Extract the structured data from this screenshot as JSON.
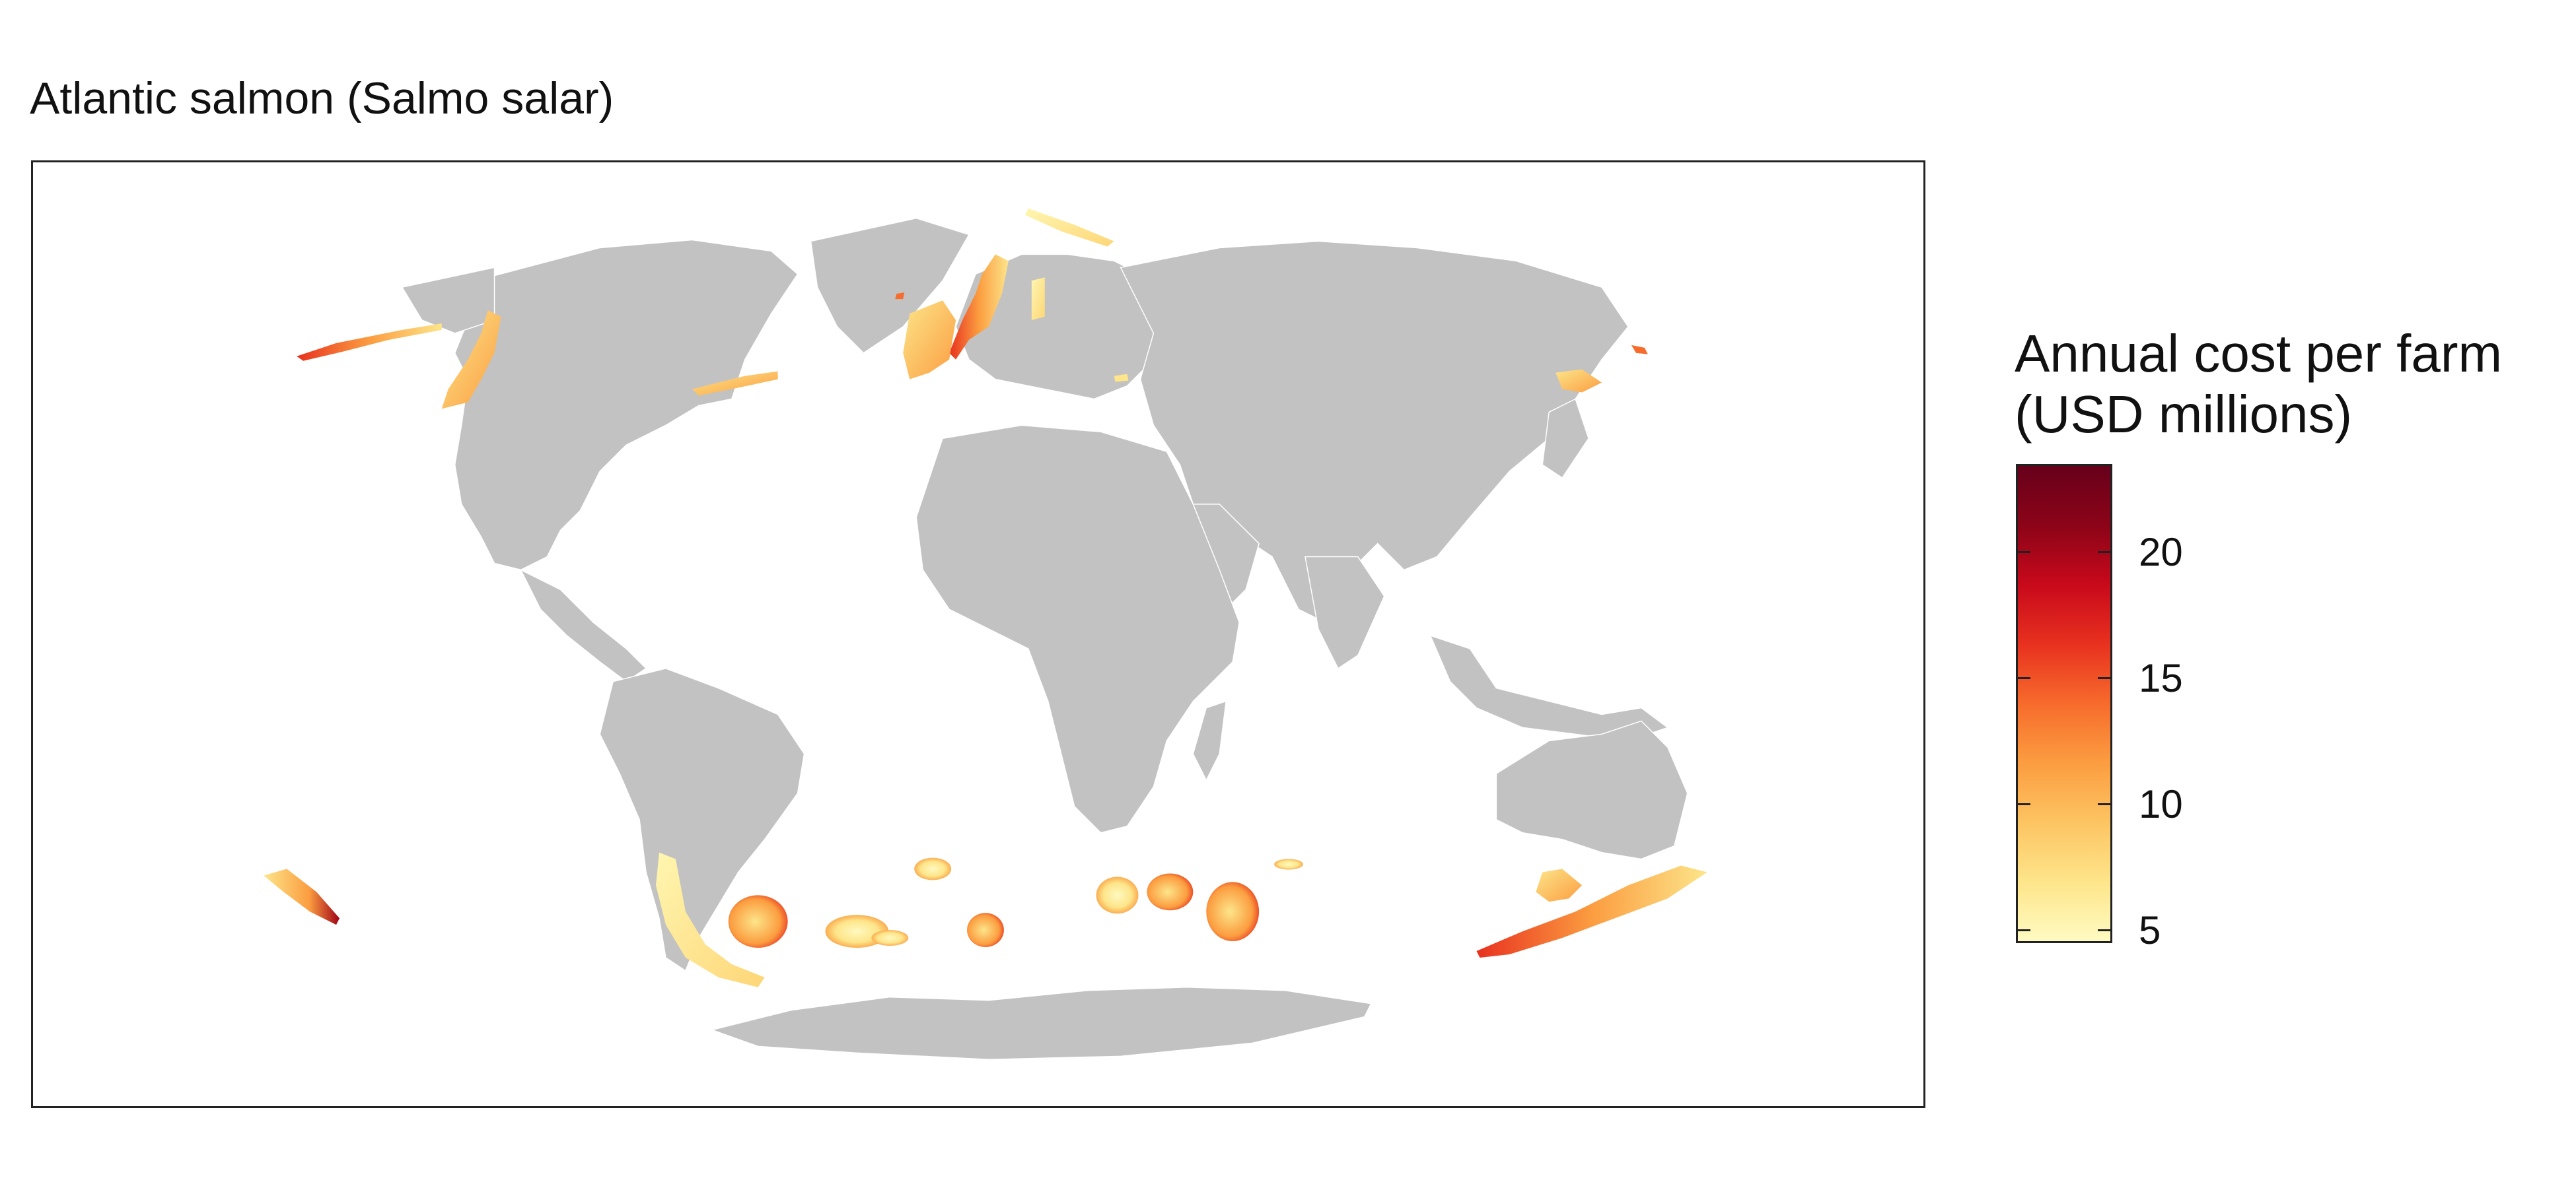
{
  "title": "Atlantic salmon (Salmo salar)",
  "legend": {
    "title_line1": "Annual cost per farm",
    "title_line2": "(USD millions)",
    "ticks": [
      {
        "label": "20",
        "value": 20
      },
      {
        "label": "15",
        "value": 15
      },
      {
        "label": "10",
        "value": 10
      },
      {
        "label": "5",
        "value": 5
      }
    ],
    "range": [
      4.5,
      23.5
    ],
    "colors": [
      "#fffbc2",
      "#fde58a",
      "#fdc462",
      "#fb9d40",
      "#f76b2c",
      "#e8311f",
      "#c8091b",
      "#8c0418",
      "#67001a"
    ]
  },
  "colors": {
    "land": "#c2c2c2",
    "ocean": "#ffffff",
    "frame": "#222222"
  }
}
